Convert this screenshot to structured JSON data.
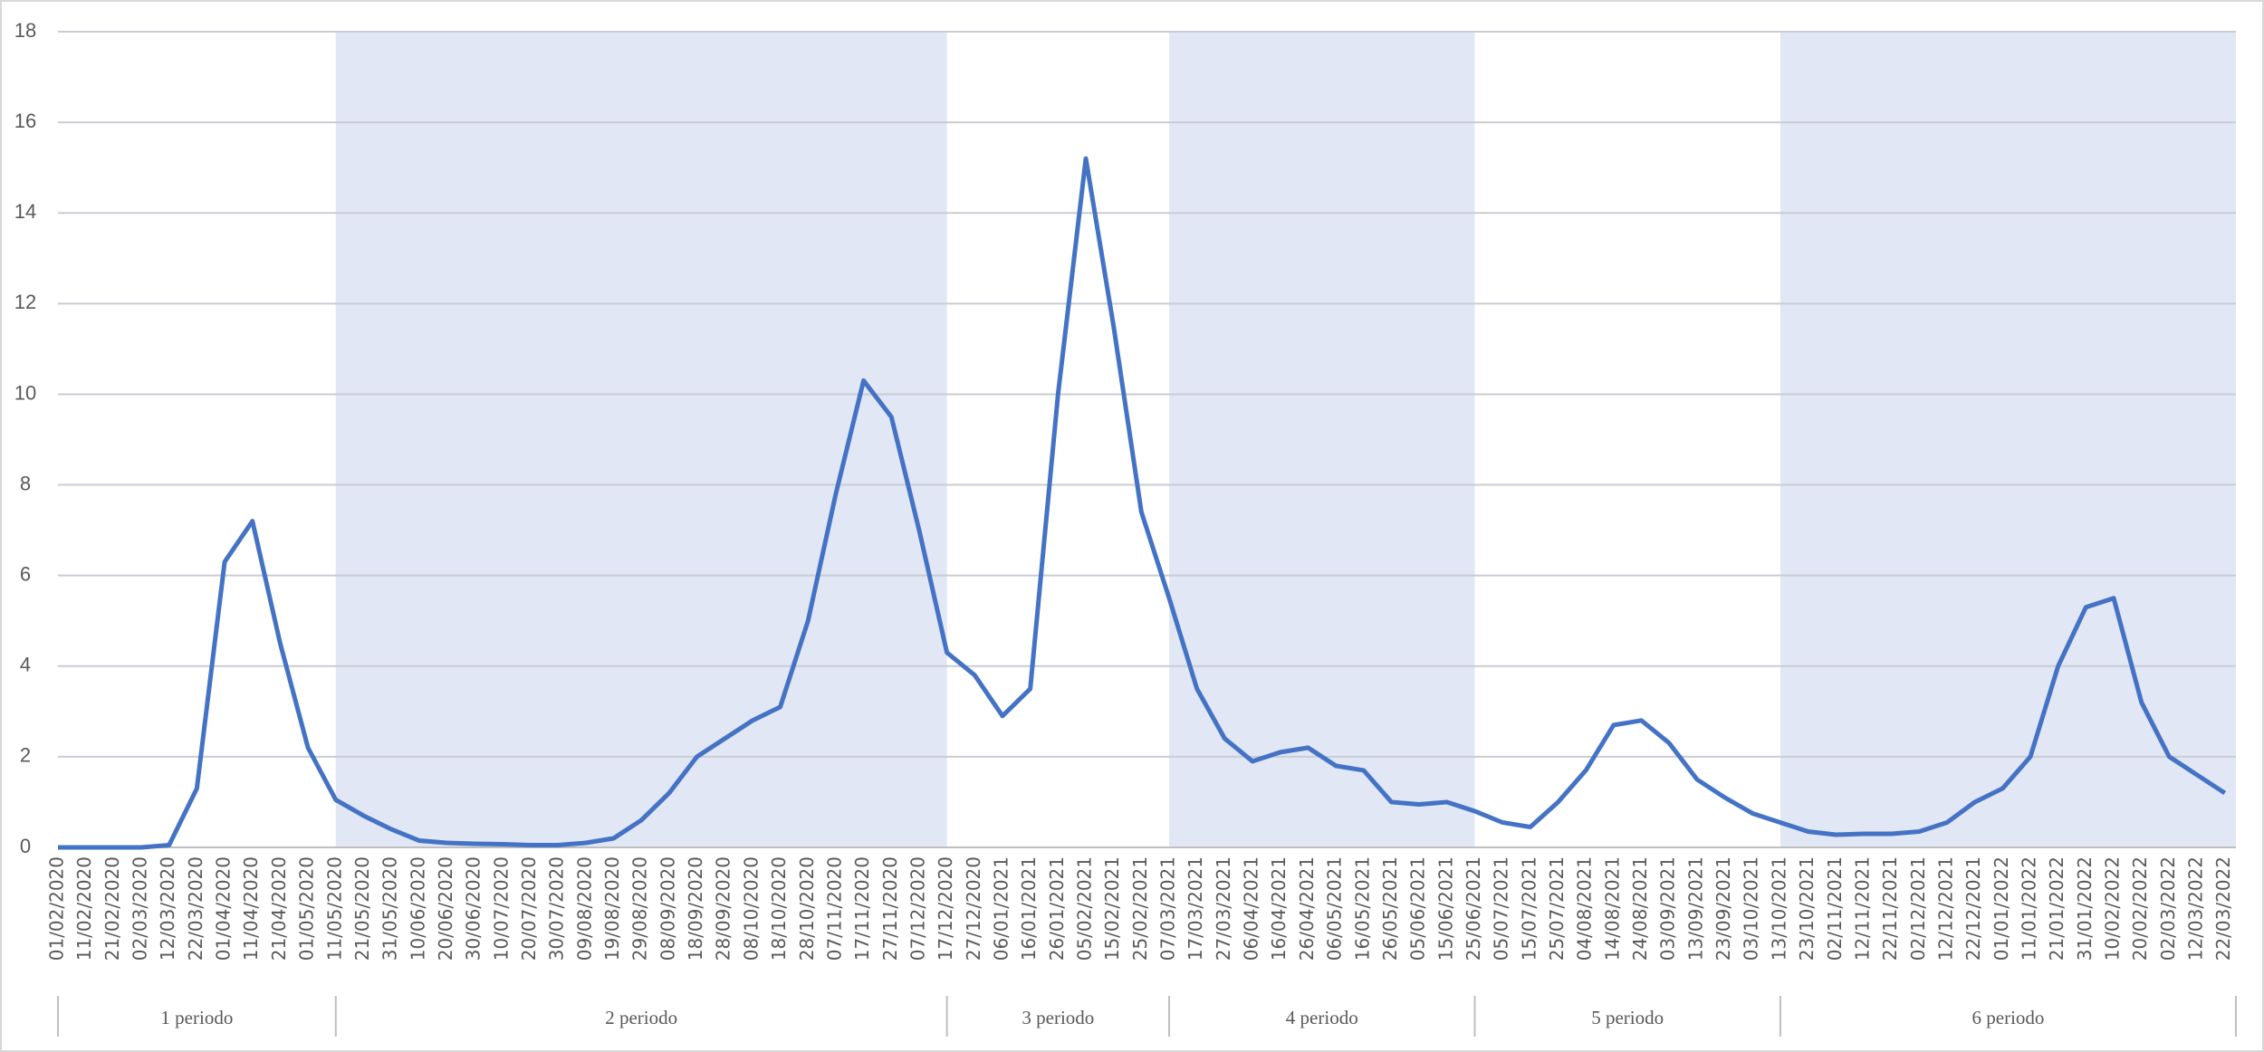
{
  "chart_data": {
    "type": "line",
    "categories": [
      "01/02/2020",
      "11/02/2020",
      "21/02/2020",
      "02/03/2020",
      "12/03/2020",
      "22/03/2020",
      "01/04/2020",
      "11/04/2020",
      "21/04/2020",
      "01/05/2020",
      "11/05/2020",
      "21/05/2020",
      "31/05/2020",
      "10/06/2020",
      "20/06/2020",
      "30/06/2020",
      "10/07/2020",
      "20/07/2020",
      "30/07/2020",
      "09/08/2020",
      "19/08/2020",
      "29/08/2020",
      "08/09/2020",
      "18/09/2020",
      "28/09/2020",
      "08/10/2020",
      "18/10/2020",
      "28/10/2020",
      "07/11/2020",
      "17/11/2020",
      "27/11/2020",
      "07/12/2020",
      "17/12/2020",
      "27/12/2020",
      "06/01/2021",
      "16/01/2021",
      "26/01/2021",
      "05/02/2021",
      "15/02/2021",
      "25/02/2021",
      "07/03/2021",
      "17/03/2021",
      "27/03/2021",
      "06/04/2021",
      "16/04/2021",
      "26/04/2021",
      "06/05/2021",
      "16/05/2021",
      "26/05/2021",
      "05/06/2021",
      "15/06/2021",
      "25/06/2021",
      "05/07/2021",
      "15/07/2021",
      "25/07/2021",
      "04/08/2021",
      "14/08/2021",
      "24/08/2021",
      "03/09/2021",
      "13/09/2021",
      "23/09/2021",
      "03/10/2021",
      "13/10/2021",
      "23/10/2021",
      "02/11/2021",
      "12/11/2021",
      "22/11/2021",
      "02/12/2021",
      "12/12/2021",
      "22/12/2021",
      "01/01/2022",
      "11/01/2022",
      "21/01/2022",
      "31/01/2022",
      "10/02/2022",
      "20/02/2022",
      "02/03/2022",
      "12/03/2022",
      "22/03/2022"
    ],
    "series": [
      {
        "color": "#4472c4",
        "values": [
          0,
          0,
          0,
          0,
          0.05,
          1.3,
          6.3,
          7.2,
          4.5,
          2.2,
          1.05,
          0.7,
          0.4,
          0.15,
          0.1,
          0.08,
          0.07,
          0.05,
          0.05,
          0.1,
          0.2,
          0.6,
          1.2,
          2.0,
          2.4,
          2.8,
          3.1,
          5.0,
          7.8,
          10.3,
          9.5,
          7.0,
          4.3,
          3.8,
          2.9,
          3.5,
          10.0,
          15.2,
          11.5,
          7.4,
          5.5,
          3.5,
          2.4,
          1.9,
          2.1,
          2.2,
          1.8,
          1.7,
          1.0,
          0.95,
          1.0,
          0.8,
          0.55,
          0.45,
          1.0,
          1.7,
          2.7,
          2.8,
          2.3,
          1.5,
          1.1,
          0.75,
          0.55,
          0.35,
          0.28,
          0.3,
          0.3,
          0.35,
          0.55,
          1.0,
          1.3,
          2.0,
          4.0,
          5.3,
          5.5,
          3.2,
          2.0,
          1.6,
          1.2
        ]
      }
    ],
    "ylim": [
      0,
      18
    ],
    "yticks": [
      0,
      2,
      4,
      6,
      8,
      10,
      12,
      14,
      16,
      18
    ],
    "grid": true,
    "periods": [
      {
        "label": "1 periodo",
        "start": "01/02/2020",
        "shaded": false
      },
      {
        "label": "2 periodo",
        "start": "11/05/2020",
        "shaded": true,
        "color": "#e1e7f4"
      },
      {
        "label": "3 periodo",
        "start": "17/12/2020",
        "shaded": false
      },
      {
        "label": "4 periodo",
        "start": "07/03/2021",
        "shaded": true,
        "color": "#e1e7f4"
      },
      {
        "label": "5 periodo",
        "start": "25/06/2021",
        "shaded": false
      },
      {
        "label": "6 periodo",
        "start": "13/10/2021",
        "shaded": true,
        "color": "#e1e7f4"
      }
    ]
  }
}
